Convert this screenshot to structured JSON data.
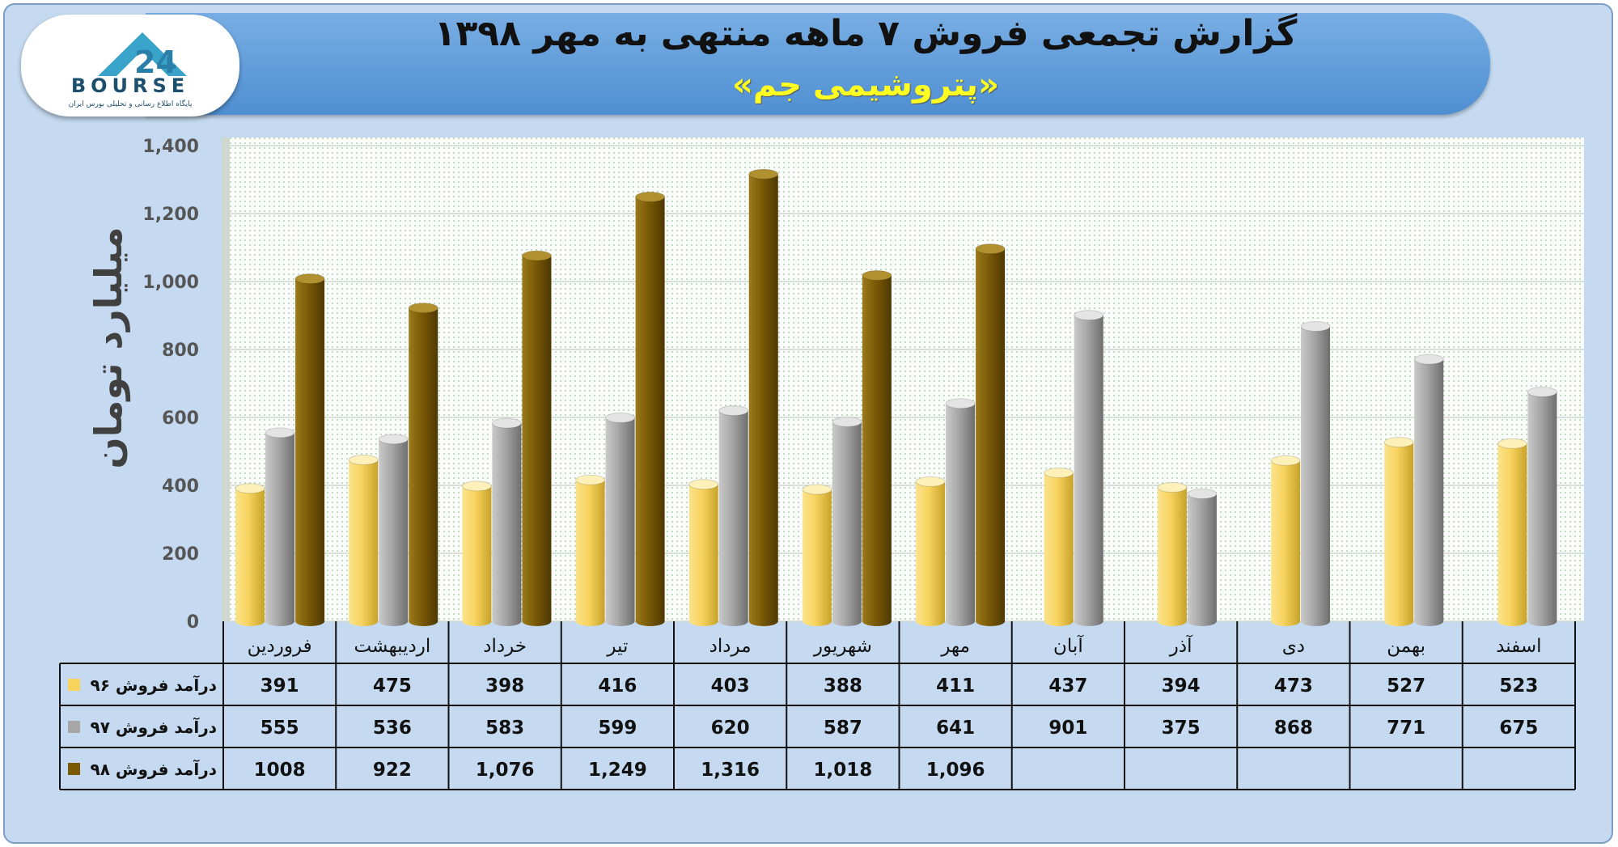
{
  "header": {
    "title": "گزارش تجمعی فروش ۷ ماهه منتهی به مهر ۱۳۹۸",
    "subtitle": "«پتروشیمی جم»"
  },
  "logo": {
    "text": "BOURSE",
    "tagline": "پایگاه اطلاع رسانی و تحلیلی بورس ایران",
    "icon": "bourse24-logo-icon"
  },
  "chart_data": {
    "type": "bar",
    "ylabel": "میلیارد تومان",
    "ylim": [
      0,
      1400
    ],
    "yticks": [
      "0",
      "200",
      "400",
      "600",
      "800",
      "1,000",
      "1,200",
      "1,400"
    ],
    "grid": true,
    "categories": [
      "فروردین",
      "اردیبهشت",
      "خرداد",
      "تیر",
      "مرداد",
      "شهریور",
      "مهر",
      "آبان",
      "آذر",
      "دی",
      "بهمن",
      "اسفند"
    ],
    "series": [
      {
        "name": "درآمد فروش ۹۶",
        "color": "#f7d35e",
        "values": [
          391,
          475,
          398,
          416,
          403,
          388,
          411,
          437,
          394,
          473,
          527,
          523
        ],
        "labels": [
          "391",
          "475",
          "398",
          "416",
          "403",
          "388",
          "411",
          "437",
          "394",
          "473",
          "527",
          "523"
        ]
      },
      {
        "name": "درآمد فروش ۹۷",
        "color": "#a6a6a6",
        "values": [
          555,
          536,
          583,
          599,
          620,
          587,
          641,
          901,
          375,
          868,
          771,
          675
        ],
        "labels": [
          "555",
          "536",
          "583",
          "599",
          "620",
          "587",
          "641",
          "901",
          "375",
          "868",
          "771",
          "675"
        ]
      },
      {
        "name": "درآمد فروش ۹۸",
        "color": "#7a5a06",
        "values": [
          1008,
          922,
          1076,
          1249,
          1316,
          1018,
          1096,
          null,
          null,
          null,
          null,
          null
        ],
        "labels": [
          "1008",
          "922",
          "1,076",
          "1,249",
          "1,316",
          "1,018",
          "1,096",
          "",
          "",
          "",
          "",
          ""
        ]
      }
    ]
  }
}
